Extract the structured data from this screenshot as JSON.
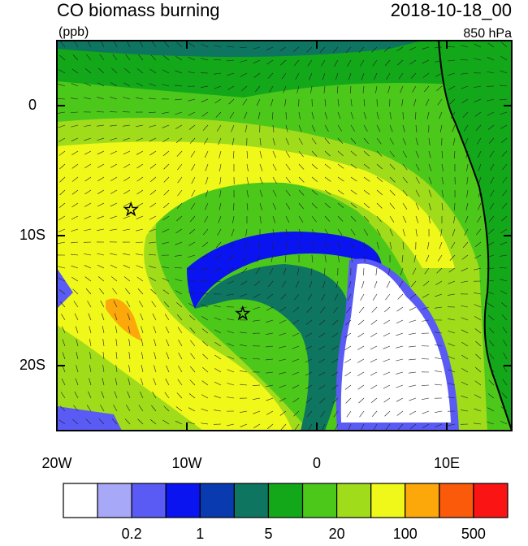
{
  "title": "CO biomass burning",
  "units": "(ppb)",
  "date": "2018-10-18_00",
  "level": "850 hPa",
  "map": {
    "xlim": [
      -20,
      15
    ],
    "ylim": [
      -25,
      5
    ],
    "xticks": [
      {
        "value": -20,
        "label": "20W"
      },
      {
        "value": -10,
        "label": "10W"
      },
      {
        "value": 0,
        "label": "0"
      },
      {
        "value": 10,
        "label": "10E"
      }
    ],
    "yticks": [
      {
        "value": 0,
        "label": "0"
      },
      {
        "value": -10,
        "label": "10S"
      },
      {
        "value": -20,
        "label": "20S"
      }
    ],
    "markers": [
      {
        "lon": -14.3,
        "lat": -8
      },
      {
        "lon": -5.7,
        "lat": -16
      }
    ]
  },
  "colorbar": {
    "colors": [
      "#ffffff",
      "#a8a8f8",
      "#5a5af5",
      "#0a14f0",
      "#0a3ab0",
      "#0e7560",
      "#12a81a",
      "#4cc81a",
      "#a0dc1a",
      "#f0f81a",
      "#fca80a",
      "#fa5a0a",
      "#fa1414"
    ],
    "labels": [
      0.2,
      1,
      5,
      20,
      100,
      500
    ]
  }
}
